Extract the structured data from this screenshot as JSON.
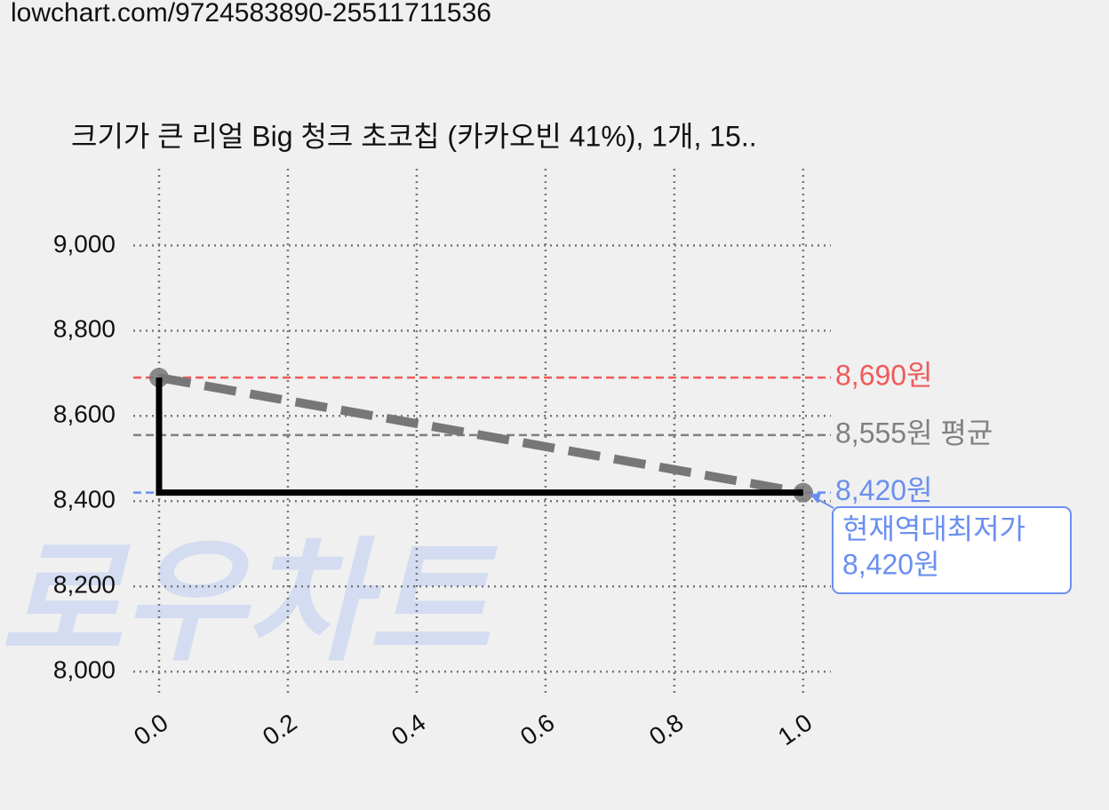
{
  "url": "lowchart.com/9724583890-25511711536",
  "chart_data": {
    "type": "line",
    "title": "크기가 큰 리얼 Big 청크 초코칩 (카카오빈 41%), 1개, 15..",
    "watermark": "로우차트",
    "xlim": [
      -0.04,
      1.043
    ],
    "ylim": [
      7940,
      9180
    ],
    "xticks": [
      {
        "value": 0,
        "label": "0.0"
      },
      {
        "value": 0.2,
        "label": "0.2"
      },
      {
        "value": 0.4,
        "label": "0.4"
      },
      {
        "value": 0.6,
        "label": "0.6"
      },
      {
        "value": 0.8,
        "label": "0.8"
      },
      {
        "value": 1,
        "label": "1.0"
      }
    ],
    "yticks": [
      {
        "value": 8000,
        "label": "8,000"
      },
      {
        "value": 8200,
        "label": "8,200"
      },
      {
        "value": 8400,
        "label": "8,400"
      },
      {
        "value": 8600,
        "label": "8,600"
      },
      {
        "value": 8800,
        "label": "8,800"
      },
      {
        "value": 9000,
        "label": "9,000"
      }
    ],
    "grid": true,
    "series": [
      {
        "x": [
          0,
          1
        ],
        "values": [
          8690,
          8420
        ],
        "color": "#777777",
        "dashed": true,
        "markers": true
      },
      {
        "x": [
          0,
          0,
          1
        ],
        "values": [
          8690,
          8420,
          8420
        ],
        "color": "#000000",
        "dashed": false,
        "markers": false
      }
    ],
    "hlines": [
      {
        "value": 8690,
        "label": "8,690원",
        "color": "#f05a5a"
      },
      {
        "value": 8555,
        "label": "8,555원 평균",
        "color": "#808080"
      },
      {
        "value": 8420,
        "label": "8,420원",
        "color": "#6a8ff0"
      }
    ],
    "annotation": {
      "lines": [
        "현재역대최저가",
        "8,420원"
      ],
      "color": "#6a8ff0"
    }
  }
}
